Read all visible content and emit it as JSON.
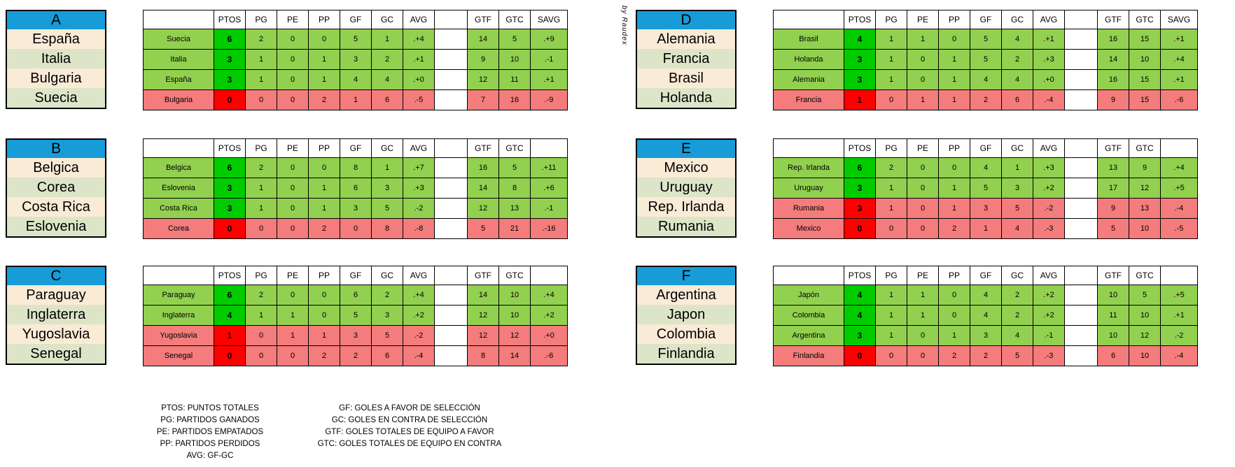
{
  "credit": "by Raudex",
  "stat_columns": [
    "PTOS",
    "PG",
    "PE",
    "PP",
    "GF",
    "GC",
    "AVG"
  ],
  "total_columns": [
    "GTF",
    "GTC"
  ],
  "savg_label": "SAVG",
  "colors": {
    "group_header_blue": "#189CD8",
    "box_row_cream": "#FAEBD7",
    "box_row_sage": "#DCE5C8",
    "row_green": "#92D050",
    "row_pink": "#F47C7C",
    "ptos_green": "#00CC00",
    "ptos_red": "#FF0000"
  },
  "groups": [
    {
      "id": "A",
      "teams": [
        "España",
        "Italia",
        "Bulgaria",
        "Suecia"
      ],
      "savg_header": true,
      "rows": [
        {
          "name": "Suecia",
          "tone": "green",
          "values": [
            "6",
            "2",
            "0",
            "0",
            "5",
            "1",
            ".+4"
          ],
          "totals": [
            "14",
            "5"
          ],
          "savg": ".+9"
        },
        {
          "name": "Italia",
          "tone": "green",
          "values": [
            "3",
            "1",
            "0",
            "1",
            "3",
            "2",
            ".+1"
          ],
          "totals": [
            "9",
            "10"
          ],
          "savg": ".-1"
        },
        {
          "name": "España",
          "tone": "green",
          "values": [
            "3",
            "1",
            "0",
            "1",
            "4",
            "4",
            ".+0"
          ],
          "totals": [
            "12",
            "11"
          ],
          "savg": ".+1"
        },
        {
          "name": "Bulgaria",
          "tone": "pink",
          "values": [
            "0",
            "0",
            "0",
            "2",
            "1",
            "6",
            ".-5"
          ],
          "totals": [
            "7",
            "16"
          ],
          "savg": ".-9"
        }
      ]
    },
    {
      "id": "B",
      "teams": [
        "Belgica",
        "Corea",
        "Costa Rica",
        "Eslovenia"
      ],
      "savg_header": false,
      "rows": [
        {
          "name": "Belgica",
          "tone": "green",
          "values": [
            "6",
            "2",
            "0",
            "0",
            "8",
            "1",
            ".+7"
          ],
          "totals": [
            "16",
            "5"
          ],
          "savg": ".+11"
        },
        {
          "name": "Eslovenia",
          "tone": "green",
          "values": [
            "3",
            "1",
            "0",
            "1",
            "6",
            "3",
            ".+3"
          ],
          "totals": [
            "14",
            "8"
          ],
          "savg": ".+6"
        },
        {
          "name": "Costa Rica",
          "tone": "green",
          "values": [
            "3",
            "1",
            "0",
            "1",
            "3",
            "5",
            ".-2"
          ],
          "totals": [
            "12",
            "13"
          ],
          "savg": ".-1"
        },
        {
          "name": "Corea",
          "tone": "pink",
          "values": [
            "0",
            "0",
            "0",
            "2",
            "0",
            "8",
            ".-8"
          ],
          "totals": [
            "5",
            "21"
          ],
          "savg": ".-16"
        }
      ]
    },
    {
      "id": "C",
      "teams": [
        "Paraguay",
        "Inglaterra",
        "Yugoslavia",
        "Senegal"
      ],
      "savg_header": false,
      "rows": [
        {
          "name": "Paraguay",
          "tone": "green",
          "values": [
            "6",
            "2",
            "0",
            "0",
            "6",
            "2",
            ".+4"
          ],
          "totals": [
            "14",
            "10"
          ],
          "savg": ".+4"
        },
        {
          "name": "Inglaterra",
          "tone": "green",
          "values": [
            "4",
            "1",
            "1",
            "0",
            "5",
            "3",
            ".+2"
          ],
          "totals": [
            "12",
            "10"
          ],
          "savg": ".+2"
        },
        {
          "name": "Yugoslavia",
          "tone": "pink",
          "values": [
            "1",
            "0",
            "1",
            "1",
            "3",
            "5",
            ".-2"
          ],
          "totals": [
            "12",
            "12"
          ],
          "savg": ".+0"
        },
        {
          "name": "Senegal",
          "tone": "pink",
          "values": [
            "0",
            "0",
            "0",
            "2",
            "2",
            "6",
            ".-4"
          ],
          "totals": [
            "8",
            "14"
          ],
          "savg": ".-6"
        }
      ]
    },
    {
      "id": "D",
      "teams": [
        "Alemania",
        "Francia",
        "Brasil",
        "Holanda"
      ],
      "savg_header": true,
      "rows": [
        {
          "name": "Brasil",
          "tone": "green",
          "values": [
            "4",
            "1",
            "1",
            "0",
            "5",
            "4",
            ".+1"
          ],
          "totals": [
            "16",
            "15"
          ],
          "savg": ".+1"
        },
        {
          "name": "Holanda",
          "tone": "green",
          "values": [
            "3",
            "1",
            "0",
            "1",
            "5",
            "2",
            ".+3"
          ],
          "totals": [
            "14",
            "10"
          ],
          "savg": ".+4"
        },
        {
          "name": "Alemania",
          "tone": "green",
          "values": [
            "3",
            "1",
            "0",
            "1",
            "4",
            "4",
            ".+0"
          ],
          "totals": [
            "16",
            "15"
          ],
          "savg": ".+1"
        },
        {
          "name": "Francia",
          "tone": "pink",
          "values": [
            "1",
            "0",
            "1",
            "1",
            "2",
            "6",
            ".-4"
          ],
          "totals": [
            "9",
            "15"
          ],
          "savg": ".-6"
        }
      ]
    },
    {
      "id": "E",
      "teams": [
        "Mexico",
        "Uruguay",
        "Rep. Irlanda",
        "Rumania"
      ],
      "savg_header": false,
      "rows": [
        {
          "name": "Rep. Irlanda",
          "tone": "green",
          "values": [
            "6",
            "2",
            "0",
            "0",
            "4",
            "1",
            ".+3"
          ],
          "totals": [
            "13",
            "9"
          ],
          "savg": ".+4"
        },
        {
          "name": "Uruguay",
          "tone": "green",
          "values": [
            "3",
            "1",
            "0",
            "1",
            "5",
            "3",
            ".+2"
          ],
          "totals": [
            "17",
            "12"
          ],
          "savg": ".+5"
        },
        {
          "name": "Rumania",
          "tone": "pink",
          "values": [
            "3",
            "1",
            "0",
            "1",
            "3",
            "5",
            ".-2"
          ],
          "totals": [
            "9",
            "13"
          ],
          "savg": ".-4"
        },
        {
          "name": "Mexico",
          "tone": "pink",
          "values": [
            "0",
            "0",
            "0",
            "2",
            "1",
            "4",
            ".-3"
          ],
          "totals": [
            "5",
            "10"
          ],
          "savg": ".-5"
        }
      ]
    },
    {
      "id": "F",
      "teams": [
        "Argentina",
        "Japon",
        "Colombia",
        "Finlandia"
      ],
      "savg_header": false,
      "rows": [
        {
          "name": "Japón",
          "tone": "green",
          "values": [
            "4",
            "1",
            "1",
            "0",
            "4",
            "2",
            ".+2"
          ],
          "totals": [
            "10",
            "5"
          ],
          "savg": ".+5"
        },
        {
          "name": "Colombia",
          "tone": "green",
          "values": [
            "4",
            "1",
            "1",
            "0",
            "4",
            "2",
            ".+2"
          ],
          "totals": [
            "11",
            "10"
          ],
          "savg": ".+1"
        },
        {
          "name": "Argentina",
          "tone": "green",
          "values": [
            "3",
            "1",
            "0",
            "1",
            "3",
            "4",
            ".-1"
          ],
          "totals": [
            "10",
            "12"
          ],
          "savg": ".-2"
        },
        {
          "name": "Finlandia",
          "tone": "pink",
          "values": [
            "0",
            "0",
            "0",
            "2",
            "2",
            "5",
            ".-3"
          ],
          "totals": [
            "6",
            "10"
          ],
          "savg": ".-4"
        }
      ]
    }
  ],
  "legend": {
    "left": [
      "PTOS: PUNTOS TOTALES",
      "PG: PARTIDOS GANADOS",
      "PE: PARTIDOS EMPATADOS",
      "PP: PARTIDOS PERDIDOS",
      "AVG: GF-GC"
    ],
    "right": [
      "GF: GOLES A FAVOR DE SELECCIÓN",
      "GC: GOLES EN CONTRA DE SELECCIÓN",
      "GTF: GOLES TOTALES DE EQUIPO A FAVOR",
      "GTC: GOLES TOTALES DE EQUIPO EN CONTRA"
    ]
  }
}
